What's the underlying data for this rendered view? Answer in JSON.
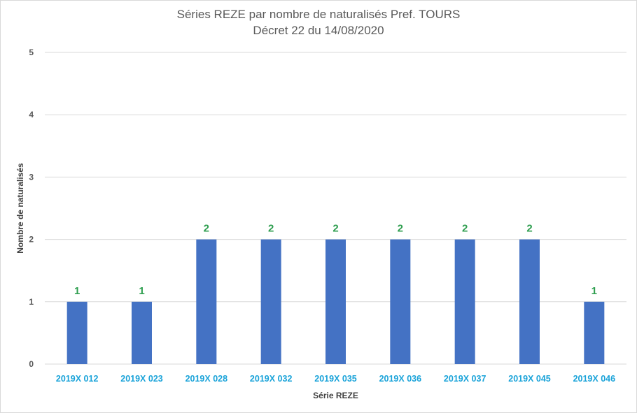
{
  "chart_data": {
    "type": "bar",
    "title": "Séries REZE par nombre de naturalisés Pref. TOURS",
    "subtitle": "Décret 22 du 14/08/2020",
    "xlabel": "Série REZE",
    "ylabel": "Nombre de naturalisés",
    "categories": [
      "2019X 012",
      "2019X 023",
      "2019X 028",
      "2019X 032",
      "2019X 035",
      "2019X 036",
      "2019X 037",
      "2019X 045",
      "2019X 046"
    ],
    "values": [
      1,
      1,
      2,
      2,
      2,
      2,
      2,
      2,
      1
    ],
    "data_labels": [
      "1",
      "1",
      "2",
      "2",
      "2",
      "2",
      "2",
      "2",
      "1"
    ],
    "ylim": [
      0,
      5
    ],
    "yticks": [
      "0",
      "1",
      "2",
      "3",
      "4",
      "5"
    ],
    "grid": true,
    "legend": "none",
    "colors": {
      "bar": "#4472c4",
      "data_label": "#2e9e4f",
      "x_tick_label": "#1aa3d9",
      "gridline": "#d9d9d9"
    }
  }
}
